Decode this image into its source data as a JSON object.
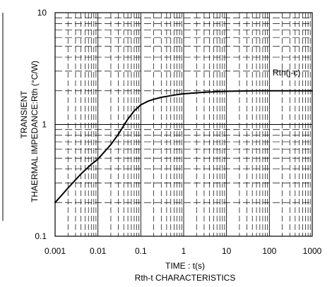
{
  "chart_data": {
    "type": "line",
    "x_scale": "log",
    "y_scale": "log",
    "xlim": [
      0.001,
      1000
    ],
    "ylim": [
      0.1,
      10
    ],
    "x_ticks": [
      "0.001",
      "0.01",
      "0.1",
      "1",
      "10",
      "100",
      "1000"
    ],
    "y_ticks": [
      "0.1",
      "1",
      "10"
    ],
    "xlabel": "TIME : t(s)",
    "ylabel_lines": [
      "TRANSIENT",
      "THAERMAL IMPEDANCE:Rth (°C/W)"
    ],
    "caption": "Rth-t CHARACTERISTICS",
    "grid": true,
    "series": [
      {
        "name": "Rth(j-c)",
        "x": [
          0.001,
          0.002,
          0.004,
          0.007,
          0.01,
          0.02,
          0.03,
          0.05,
          0.07,
          0.1,
          0.15,
          0.2,
          0.3,
          0.5,
          0.7,
          1,
          2,
          3,
          5,
          7,
          10,
          20,
          50,
          100,
          200,
          500,
          1000
        ],
        "y": [
          0.2,
          0.27,
          0.36,
          0.44,
          0.49,
          0.66,
          0.82,
          1.12,
          1.32,
          1.5,
          1.62,
          1.68,
          1.75,
          1.81,
          1.85,
          1.88,
          1.92,
          1.94,
          1.96,
          1.97,
          1.98,
          1.99,
          2.0,
          2.0,
          2.0,
          2.0,
          2.0
        ]
      }
    ]
  }
}
